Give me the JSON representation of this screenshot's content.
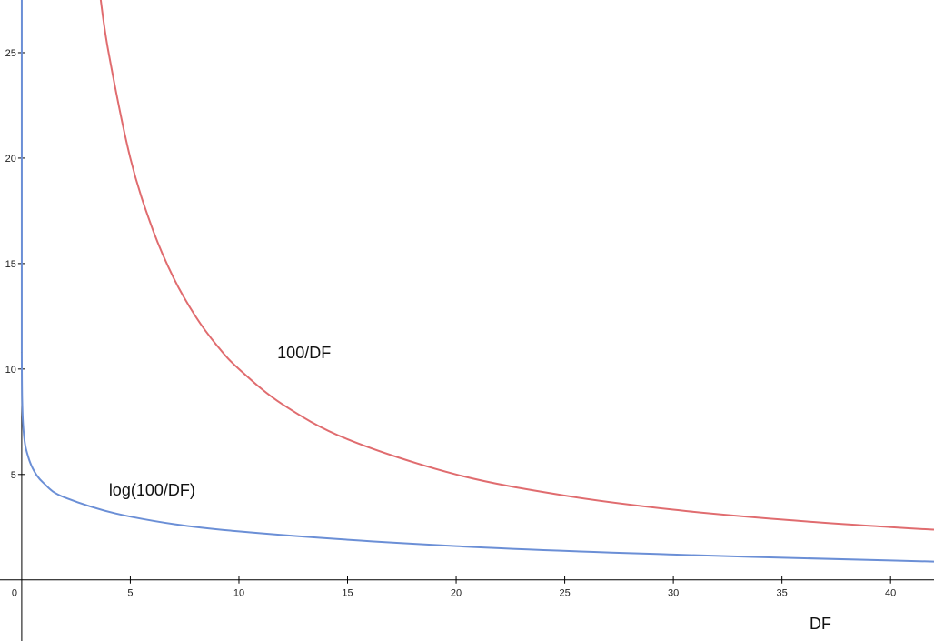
{
  "chart_data": {
    "type": "line",
    "title": "",
    "xlabel": "DF",
    "ylabel": "",
    "xlim": [
      -1,
      42
    ],
    "ylim": [
      -2.9,
      27.5
    ],
    "x_ticks": [
      0,
      5,
      10,
      15,
      20,
      25,
      30,
      35,
      40
    ],
    "y_ticks": [
      5,
      10,
      15,
      20,
      25
    ],
    "grid": false,
    "legend": "none",
    "series": [
      {
        "name": "100/DF",
        "color": "#e06c6f",
        "label_at": [
          13,
          10.5
        ],
        "x": [
          3.6,
          4,
          5,
          6,
          7,
          8,
          9,
          10,
          12,
          15,
          20,
          25,
          30,
          35,
          40,
          42
        ],
        "y": [
          27.8,
          25,
          20,
          16.7,
          14.3,
          12.5,
          11.1,
          10,
          8.33,
          6.67,
          5,
          4,
          3.33,
          2.86,
          2.5,
          2.38
        ]
      },
      {
        "name": "log(100/DF)",
        "color": "#6b8fd6",
        "label_at": [
          6,
          4.0
        ],
        "x": [
          0.002,
          0.005,
          0.01,
          0.02,
          0.05,
          0.1,
          0.2,
          0.5,
          1,
          2,
          5,
          10,
          20,
          30,
          40,
          42
        ],
        "y": [
          10.8,
          9.9,
          9.2,
          8.5,
          7.6,
          6.9,
          6.2,
          5.3,
          4.6,
          3.9,
          3.0,
          2.3,
          1.6,
          1.2,
          0.92,
          0.87
        ]
      }
    ]
  }
}
